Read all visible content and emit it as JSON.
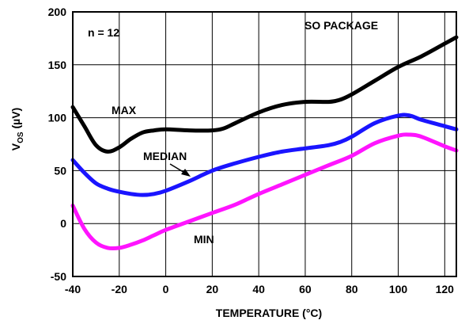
{
  "chart_data": {
    "type": "line",
    "title": "",
    "xlabel": "TEMPERATURE (°C)",
    "ylabel_main": "V",
    "ylabel_sub": "OS",
    "ylabel_unit": " (µV)",
    "xlim": [
      -40,
      125
    ],
    "ylim": [
      -50,
      200
    ],
    "x_ticks": [
      -40,
      -20,
      0,
      20,
      40,
      60,
      80,
      100,
      120
    ],
    "y_ticks": [
      -50,
      0,
      50,
      100,
      150,
      200
    ],
    "grid": true,
    "legend": "none",
    "series": [
      {
        "name": "MAX",
        "color": "#000000",
        "points": [
          [
            -40,
            110
          ],
          [
            -35,
            92
          ],
          [
            -30,
            74
          ],
          [
            -25,
            68
          ],
          [
            -20,
            72
          ],
          [
            -15,
            80
          ],
          [
            -10,
            86
          ],
          [
            -5,
            88
          ],
          [
            0,
            89
          ],
          [
            10,
            88
          ],
          [
            20,
            88
          ],
          [
            25,
            90
          ],
          [
            30,
            95
          ],
          [
            40,
            105
          ],
          [
            50,
            112
          ],
          [
            60,
            115
          ],
          [
            70,
            115
          ],
          [
            75,
            117
          ],
          [
            80,
            122
          ],
          [
            90,
            135
          ],
          [
            100,
            148
          ],
          [
            110,
            158
          ],
          [
            120,
            170
          ],
          [
            125,
            176
          ]
        ]
      },
      {
        "name": "MEDIAN",
        "color": "#1a14ff",
        "points": [
          [
            -40,
            60
          ],
          [
            -35,
            48
          ],
          [
            -30,
            38
          ],
          [
            -25,
            33
          ],
          [
            -20,
            30
          ],
          [
            -15,
            28
          ],
          [
            -10,
            27
          ],
          [
            -5,
            28
          ],
          [
            0,
            31
          ],
          [
            10,
            40
          ],
          [
            20,
            50
          ],
          [
            30,
            57
          ],
          [
            40,
            63
          ],
          [
            50,
            68
          ],
          [
            60,
            71
          ],
          [
            70,
            74
          ],
          [
            75,
            77
          ],
          [
            80,
            82
          ],
          [
            90,
            95
          ],
          [
            100,
            102
          ],
          [
            105,
            102
          ],
          [
            110,
            98
          ],
          [
            120,
            92
          ],
          [
            125,
            89
          ]
        ]
      },
      {
        "name": "MIN",
        "color": "#ff14ff",
        "points": [
          [
            -40,
            17
          ],
          [
            -35,
            -5
          ],
          [
            -30,
            -18
          ],
          [
            -25,
            -23
          ],
          [
            -20,
            -23
          ],
          [
            -15,
            -20
          ],
          [
            -10,
            -16
          ],
          [
            -5,
            -11
          ],
          [
            0,
            -6
          ],
          [
            10,
            2
          ],
          [
            20,
            10
          ],
          [
            30,
            18
          ],
          [
            40,
            28
          ],
          [
            50,
            37
          ],
          [
            60,
            46
          ],
          [
            70,
            55
          ],
          [
            80,
            64
          ],
          [
            90,
            76
          ],
          [
            100,
            83
          ],
          [
            105,
            84
          ],
          [
            110,
            82
          ],
          [
            120,
            73
          ],
          [
            125,
            69
          ]
        ]
      }
    ],
    "annotations": {
      "n_label": "n = 12",
      "package_label": "SO PACKAGE",
      "max_label": "MAX",
      "median_label": "MEDIAN",
      "min_label": "MIN"
    }
  }
}
